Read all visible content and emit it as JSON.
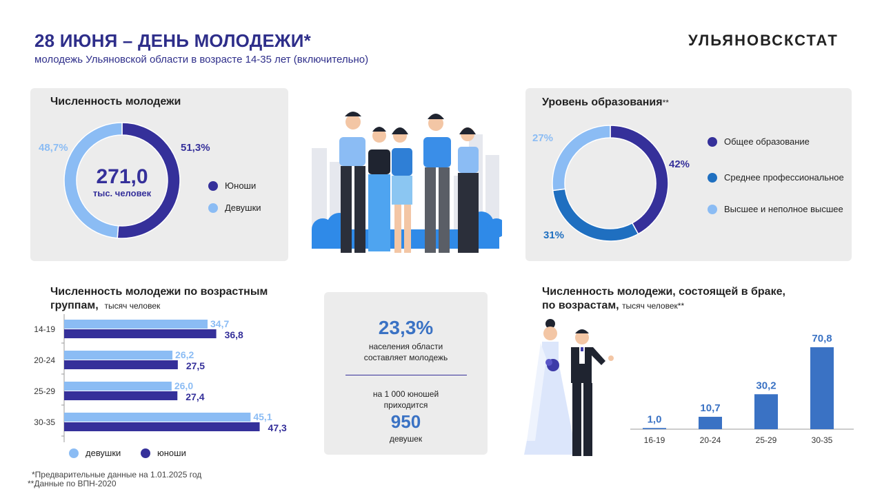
{
  "header": {
    "title": "28 ИЮНЯ – ДЕНЬ МОЛОДЕЖИ*",
    "subtitle": "молодежь Ульяновской области в возрасте 14-35 лет (включительно)",
    "brand": "УЛЬЯНОВСКСТАТ"
  },
  "colors": {
    "dark_blue": "#35309a",
    "light_blue": "#8bbcf4",
    "mid_blue": "#1f6fc0",
    "bar_blue": "#3a72c4",
    "card_bg": "#ececec"
  },
  "population": {
    "title": "Численность молодежи",
    "total": "271,0",
    "unit": "тыс. человек",
    "legend": [
      "Юноши",
      "Девушки"
    ]
  },
  "education": {
    "title": "Уровень образования",
    "title_mark": "**",
    "legend": [
      "Общее образование",
      "Среднее профессиональное",
      "Высшее и неполное высшее"
    ]
  },
  "age_groups": {
    "title_line1": "Численность молодежи по возрастным",
    "title_line2": "группам,",
    "unit": "тысяч человек",
    "legend": [
      "девушки",
      "юноши"
    ]
  },
  "summary": {
    "percent": "23,3%",
    "percent_text1": "населения области",
    "percent_text2": "составляет молодежь",
    "ratio_text1": "на 1 000 юношей",
    "ratio_text2": "приходится",
    "ratio_value": "950",
    "ratio_text3": "девушек"
  },
  "married": {
    "title_line1": "Численность молодежи, состоящей в браке,",
    "title_line2": "по возрастам,",
    "unit": "тысяч человек**"
  },
  "footnotes": [
    "*Предварительные данные на 1.01.2025 год",
    "**Данные по ВПН-2020"
  ],
  "chart_data": [
    {
      "type": "pie",
      "title": "Численность молодежи",
      "categories": [
        "Юноши",
        "Девушки"
      ],
      "values": [
        51.3,
        48.7
      ],
      "labels": [
        "51,3%",
        "48,7%"
      ],
      "donut": true
    },
    {
      "type": "pie",
      "title": "Уровень образования",
      "categories": [
        "Общее образование",
        "Среднее профессиональное",
        "Высшее и неполное высшее"
      ],
      "values": [
        42,
        31,
        27
      ],
      "labels": [
        "42%",
        "31%",
        "27%"
      ],
      "donut": true
    },
    {
      "type": "bar",
      "orientation": "horizontal",
      "title": "Численность молодежи по возрастным группам",
      "categories": [
        "14-19",
        "20-24",
        "25-29",
        "30-35"
      ],
      "series": [
        {
          "name": "девушки",
          "values": [
            34.7,
            26.2,
            26.0,
            45.1
          ],
          "labels": [
            "34,7",
            "26,2",
            "26,0",
            "45,1"
          ]
        },
        {
          "name": "юноши",
          "values": [
            36.8,
            27.5,
            27.4,
            47.3
          ],
          "labels": [
            "36,8",
            "27,5",
            "27,4",
            "47,3"
          ]
        }
      ],
      "xlim": [
        0,
        60
      ]
    },
    {
      "type": "bar",
      "title": "Численность молодежи, состоящей в браке, по возрастам",
      "categories": [
        "16-19",
        "20-24",
        "25-29",
        "30-35"
      ],
      "values": [
        1.0,
        10.7,
        30.2,
        70.8
      ],
      "labels": [
        "1,0",
        "10,7",
        "30,2",
        "70,8"
      ],
      "ylim": [
        0,
        80
      ]
    }
  ]
}
